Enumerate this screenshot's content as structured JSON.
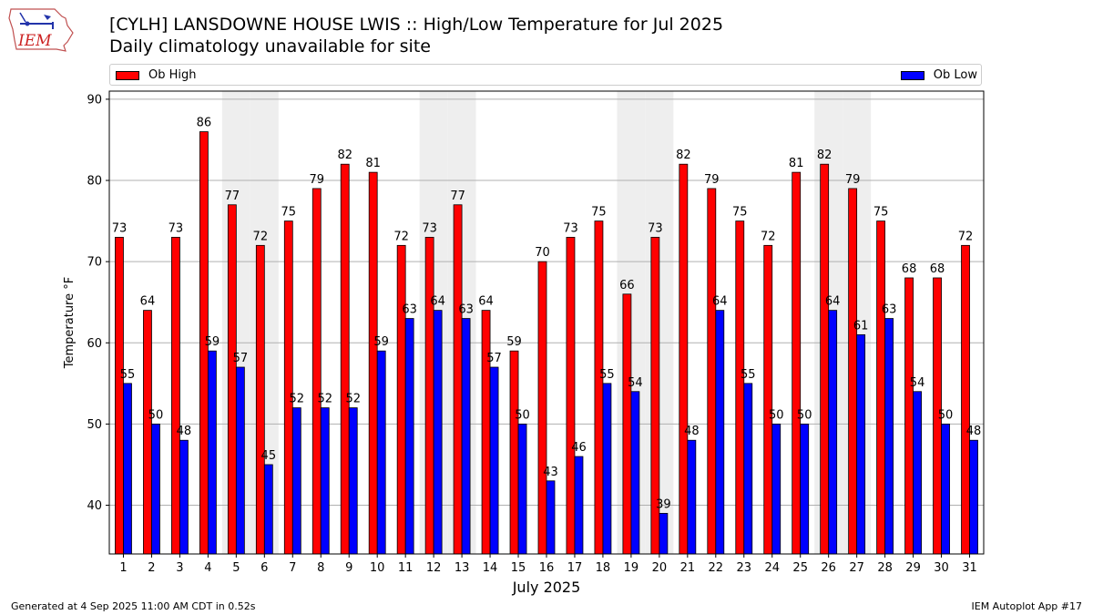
{
  "logo": {
    "text": "IEM"
  },
  "title": {
    "line1": "[CYLH] LANSDOWNE HOUSE LWIS :: High/Low Temperature for Jul 2025",
    "line2": "Daily climatology unavailable for site"
  },
  "legend": {
    "position": "top"
  },
  "footer": {
    "left": "Generated at 4 Sep 2025 11:00 AM CDT in 0.52s",
    "right": "IEM Autoplot App #17"
  },
  "colors": {
    "high": "#ff0000",
    "low": "#0000ff",
    "weekend_band": "#eeeeee",
    "grid": "#b0b0b0"
  },
  "chart_data": {
    "type": "bar",
    "xlabel": "July 2025",
    "ylabel": "Temperature °F",
    "ylim": [
      34,
      91
    ],
    "yticks": [
      40,
      50,
      60,
      70,
      80,
      90
    ],
    "grid": true,
    "categories": [
      "1",
      "2",
      "3",
      "4",
      "5",
      "6",
      "7",
      "8",
      "9",
      "10",
      "11",
      "12",
      "13",
      "14",
      "15",
      "16",
      "17",
      "18",
      "19",
      "20",
      "21",
      "22",
      "23",
      "24",
      "25",
      "26",
      "27",
      "28",
      "29",
      "30",
      "31"
    ],
    "shaded_days": [
      5,
      6,
      12,
      13,
      19,
      20,
      26,
      27
    ],
    "series": [
      {
        "name": "Ob High",
        "color": "#ff0000",
        "values": [
          73,
          64,
          73,
          86,
          77,
          72,
          75,
          79,
          82,
          81,
          72,
          73,
          77,
          64,
          59,
          70,
          73,
          75,
          66,
          73,
          82,
          79,
          75,
          72,
          81,
          82,
          79,
          75,
          68,
          68,
          72
        ]
      },
      {
        "name": "Ob Low",
        "color": "#0000ff",
        "values": [
          55,
          50,
          48,
          59,
          57,
          45,
          52,
          52,
          52,
          59,
          63,
          64,
          63,
          57,
          50,
          43,
          46,
          55,
          54,
          39,
          48,
          64,
          55,
          50,
          50,
          64,
          61,
          63,
          54,
          50,
          48
        ]
      }
    ]
  }
}
